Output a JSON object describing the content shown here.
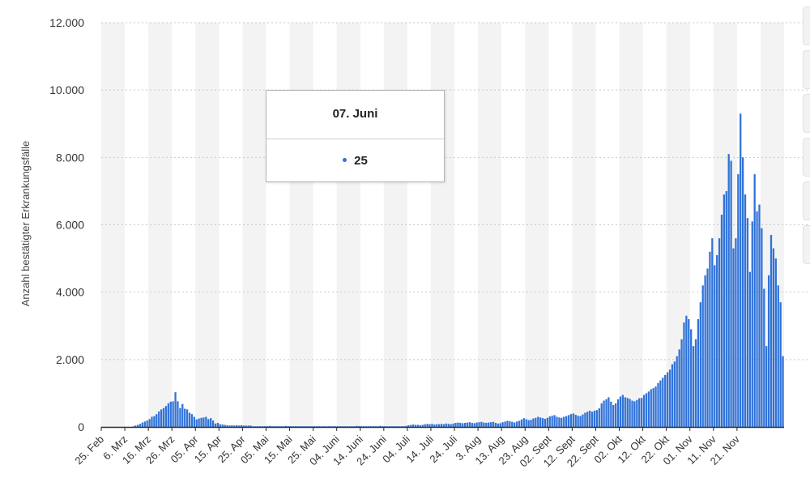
{
  "chart_data": {
    "type": "bar",
    "title": "",
    "ylabel": "Anzahl bestätigter Erkrankungsfälle",
    "xlabel": "",
    "ylim": [
      0,
      12000
    ],
    "y_ticks": [
      0,
      2000,
      4000,
      6000,
      8000,
      10000,
      12000
    ],
    "y_tick_labels": [
      "0",
      "2.000",
      "4.000",
      "6.000",
      "8.000",
      "10.000",
      "12.000"
    ],
    "x_tick_labels": [
      "25. Feb",
      "6. Mrz",
      "16. Mrz",
      "26. Mrz",
      "05. Apr",
      "15. Apr",
      "25. Apr",
      "05. Mai",
      "15. Mai",
      "25. Mai",
      "04. Juni",
      "14. Juni",
      "24. Juni",
      "04. Juli",
      "14. Juli",
      "24. Juli",
      "3. Aug",
      "13. Aug",
      "23. Aug",
      "02. Sept",
      "12. Sept",
      "22. Sept",
      "02. Okt",
      "12. Okt",
      "22. Okt",
      "01. Nov",
      "11. Nov",
      "21. Nov"
    ],
    "start_date": "25. Feb",
    "days_per_tick": 10,
    "grid": "horizontal dotted lines, alternating vertical bands",
    "legend": "none",
    "values": [
      0,
      0,
      0,
      0,
      0,
      0,
      0,
      0,
      0,
      0,
      0,
      0,
      0,
      15,
      40,
      60,
      90,
      130,
      160,
      190,
      230,
      300,
      320,
      380,
      460,
      520,
      560,
      620,
      700,
      750,
      760,
      1030,
      760,
      560,
      680,
      540,
      520,
      420,
      380,
      300,
      220,
      250,
      270,
      280,
      300,
      230,
      260,
      190,
      100,
      120,
      80,
      70,
      60,
      50,
      40,
      50,
      40,
      50,
      40,
      50,
      40,
      40,
      40,
      40,
      20,
      20,
      20,
      20,
      20,
      20,
      20,
      30,
      20,
      20,
      20,
      20,
      20,
      20,
      30,
      20,
      20,
      20,
      20,
      20,
      20,
      20,
      20,
      20,
      20,
      20,
      20,
      20,
      20,
      20,
      20,
      20,
      20,
      20,
      20,
      20,
      20,
      20,
      20,
      20,
      20,
      20,
      20,
      20,
      30,
      25,
      20,
      20,
      20,
      20,
      20,
      20,
      20,
      20,
      30,
      20,
      20,
      20,
      20,
      20,
      20,
      20,
      20,
      20,
      20,
      30,
      50,
      60,
      70,
      60,
      60,
      50,
      60,
      80,
      90,
      80,
      90,
      70,
      80,
      80,
      90,
      80,
      100,
      90,
      80,
      100,
      120,
      130,
      120,
      110,
      120,
      130,
      140,
      120,
      110,
      130,
      140,
      150,
      130,
      120,
      130,
      140,
      150,
      120,
      100,
      110,
      140,
      160,
      180,
      170,
      150,
      130,
      160,
      180,
      220,
      260,
      230,
      200,
      210,
      250,
      270,
      300,
      280,
      260,
      240,
      270,
      310,
      330,
      350,
      300,
      280,
      270,
      300,
      320,
      350,
      380,
      400,
      360,
      330,
      320,
      370,
      420,
      450,
      480,
      450,
      480,
      500,
      550,
      700,
      780,
      820,
      880,
      750,
      650,
      700,
      820,
      900,
      950,
      880,
      860,
      830,
      780,
      760,
      800,
      850,
      860,
      950,
      1000,
      1050,
      1120,
      1150,
      1200,
      1300,
      1380,
      1460,
      1540,
      1620,
      1700,
      1860,
      1940,
      2100,
      2300,
      2600,
      3100,
      3300,
      3200,
      2900,
      2400,
      2600,
      3200,
      3700,
      4200,
      4500,
      4700,
      5200,
      5600,
      4800,
      5100,
      5600,
      6300,
      6900,
      7000,
      8100,
      7900,
      5300,
      5600,
      7500,
      9300,
      8000,
      6900,
      6200,
      4600,
      6100,
      7500,
      6400,
      6600,
      5900,
      4100,
      2400,
      4500,
      5700,
      5300,
      5000,
      4200,
      3700,
      2100
    ],
    "tooltip": {
      "date": "07. Juni",
      "value": "25"
    },
    "colors": {
      "bar": "#2f72d8",
      "band": "#f3f3f3",
      "grid": "#c8c8c8",
      "axis": "#2b2b2b"
    }
  }
}
